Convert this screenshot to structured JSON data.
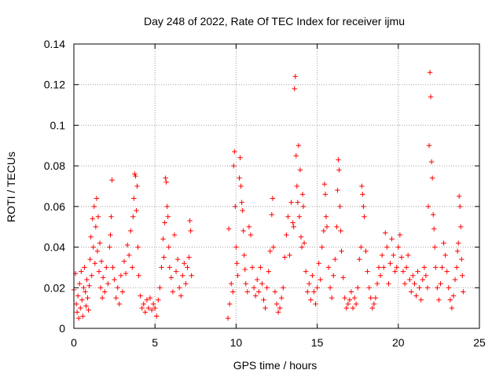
{
  "chart_data": {
    "type": "scatter",
    "title": "Day 248 of 2022, Rate Of TEC Index for receiver ijmu",
    "xlabel": "GPS time / hours",
    "ylabel": "ROTI / TECUs",
    "xlim": [
      0,
      25
    ],
    "ylim": [
      0,
      0.14
    ],
    "xticks": [
      0,
      5,
      10,
      15,
      20,
      25
    ],
    "xtick_labels": [
      "0",
      "5",
      "10",
      "15",
      "20",
      "25"
    ],
    "yticks": [
      0,
      0.02,
      0.04,
      0.06,
      0.08,
      0.1,
      0.12,
      0.14
    ],
    "ytick_labels": [
      "0",
      "0.02",
      "0.04",
      "0.06",
      "0.08",
      "0.1",
      "0.12",
      "0.14"
    ],
    "grid": true,
    "marker": "+",
    "color": "#ff0000",
    "series": [
      {
        "points": [
          [
            0.0,
            0.019
          ],
          [
            0.1,
            0.027
          ],
          [
            0.15,
            0.012
          ],
          [
            0.2,
            0.008
          ],
          [
            0.25,
            0.016
          ],
          [
            0.3,
            0.005
          ],
          [
            0.35,
            0.022
          ],
          [
            0.4,
            0.01
          ],
          [
            0.45,
            0.028
          ],
          [
            0.5,
            0.014
          ],
          [
            0.55,
            0.006
          ],
          [
            0.6,
            0.02
          ],
          [
            0.65,
            0.03
          ],
          [
            0.7,
            0.018
          ],
          [
            0.75,
            0.011
          ],
          [
            0.8,
            0.024
          ],
          [
            0.85,
            0.015
          ],
          [
            0.9,
            0.009
          ],
          [
            0.95,
            0.021
          ],
          [
            1.0,
            0.034
          ],
          [
            1.05,
            0.045
          ],
          [
            1.1,
            0.026
          ],
          [
            1.15,
            0.054
          ],
          [
            1.2,
            0.04
          ],
          [
            1.25,
            0.06
          ],
          [
            1.3,
            0.032
          ],
          [
            1.35,
            0.05
          ],
          [
            1.4,
            0.064
          ],
          [
            1.45,
            0.038
          ],
          [
            1.5,
            0.055
          ],
          [
            1.55,
            0.028
          ],
          [
            1.6,
            0.042
          ],
          [
            1.65,
            0.02
          ],
          [
            1.7,
            0.033
          ],
          [
            1.75,
            0.015
          ],
          [
            1.8,
            0.025
          ],
          [
            1.9,
            0.018
          ],
          [
            2.0,
            0.03
          ],
          [
            2.1,
            0.022
          ],
          [
            2.2,
            0.04
          ],
          [
            2.25,
            0.046
          ],
          [
            2.3,
            0.055
          ],
          [
            2.35,
            0.073
          ],
          [
            2.4,
            0.03
          ],
          [
            2.5,
            0.024
          ],
          [
            2.6,
            0.015
          ],
          [
            2.7,
            0.02
          ],
          [
            2.8,
            0.012
          ],
          [
            2.9,
            0.026
          ],
          [
            3.0,
            0.018
          ],
          [
            3.1,
            0.033
          ],
          [
            3.2,
            0.027
          ],
          [
            3.3,
            0.041
          ],
          [
            3.4,
            0.036
          ],
          [
            3.5,
            0.048
          ],
          [
            3.6,
            0.03
          ],
          [
            3.65,
            0.055
          ],
          [
            3.7,
            0.064
          ],
          [
            3.75,
            0.076
          ],
          [
            3.8,
            0.075
          ],
          [
            3.85,
            0.058
          ],
          [
            3.9,
            0.07
          ],
          [
            3.95,
            0.04
          ],
          [
            4.0,
            0.026
          ],
          [
            4.1,
            0.016
          ],
          [
            4.2,
            0.01
          ],
          [
            4.3,
            0.012
          ],
          [
            4.4,
            0.008
          ],
          [
            4.5,
            0.014
          ],
          [
            4.6,
            0.01
          ],
          [
            4.7,
            0.015
          ],
          [
            4.8,
            0.009
          ],
          [
            4.9,
            0.012
          ],
          [
            5.0,
            0.01
          ],
          [
            5.1,
            0.006
          ],
          [
            5.2,
            0.014
          ],
          [
            5.3,
            0.02
          ],
          [
            5.4,
            0.03
          ],
          [
            5.5,
            0.044
          ],
          [
            5.55,
            0.035
          ],
          [
            5.6,
            0.052
          ],
          [
            5.65,
            0.074
          ],
          [
            5.7,
            0.072
          ],
          [
            5.75,
            0.06
          ],
          [
            5.8,
            0.055
          ],
          [
            5.85,
            0.04
          ],
          [
            5.9,
            0.03
          ],
          [
            6.0,
            0.025
          ],
          [
            6.1,
            0.018
          ],
          [
            6.2,
            0.046
          ],
          [
            6.3,
            0.028
          ],
          [
            6.4,
            0.034
          ],
          [
            6.5,
            0.02
          ],
          [
            6.6,
            0.016
          ],
          [
            6.7,
            0.026
          ],
          [
            6.8,
            0.032
          ],
          [
            6.9,
            0.022
          ],
          [
            7.0,
            0.03
          ],
          [
            7.1,
            0.035
          ],
          [
            7.15,
            0.053
          ],
          [
            7.2,
            0.048
          ],
          [
            7.25,
            0.026
          ],
          [
            9.5,
            0.005
          ],
          [
            9.55,
            0.049
          ],
          [
            9.6,
            0.012
          ],
          [
            9.7,
            0.022
          ],
          [
            9.8,
            0.018
          ],
          [
            9.85,
            0.08
          ],
          [
            9.9,
            0.087
          ],
          [
            9.95,
            0.06
          ],
          [
            10.0,
            0.04
          ],
          [
            10.05,
            0.032
          ],
          [
            10.1,
            0.026
          ],
          [
            10.2,
            0.074
          ],
          [
            10.25,
            0.084
          ],
          [
            10.3,
            0.07
          ],
          [
            10.35,
            0.062
          ],
          [
            10.4,
            0.058
          ],
          [
            10.45,
            0.048
          ],
          [
            10.5,
            0.036
          ],
          [
            10.55,
            0.029
          ],
          [
            10.6,
            0.022
          ],
          [
            10.7,
            0.018
          ],
          [
            10.8,
            0.05
          ],
          [
            10.9,
            0.046
          ],
          [
            11.0,
            0.03
          ],
          [
            11.1,
            0.02
          ],
          [
            11.2,
            0.016
          ],
          [
            11.3,
            0.024
          ],
          [
            11.4,
            0.018
          ],
          [
            11.5,
            0.03
          ],
          [
            11.6,
            0.022
          ],
          [
            11.7,
            0.014
          ],
          [
            11.8,
            0.01
          ],
          [
            11.9,
            0.02
          ],
          [
            12.0,
            0.028
          ],
          [
            12.1,
            0.038
          ],
          [
            12.2,
            0.056
          ],
          [
            12.25,
            0.064
          ],
          [
            12.3,
            0.04
          ],
          [
            12.4,
            0.018
          ],
          [
            12.5,
            0.012
          ],
          [
            12.6,
            0.008
          ],
          [
            12.7,
            0.01
          ],
          [
            12.8,
            0.015
          ],
          [
            12.9,
            0.02
          ],
          [
            13.0,
            0.035
          ],
          [
            13.1,
            0.046
          ],
          [
            13.2,
            0.055
          ],
          [
            13.3,
            0.036
          ],
          [
            13.4,
            0.062
          ],
          [
            13.5,
            0.052
          ],
          [
            13.55,
            0.05
          ],
          [
            13.6,
            0.118
          ],
          [
            13.65,
            0.124
          ],
          [
            13.7,
            0.085
          ],
          [
            13.75,
            0.07
          ],
          [
            13.8,
            0.062
          ],
          [
            13.85,
            0.09
          ],
          [
            13.9,
            0.055
          ],
          [
            13.95,
            0.078
          ],
          [
            14.0,
            0.045
          ],
          [
            14.05,
            0.04
          ],
          [
            14.1,
            0.066
          ],
          [
            14.15,
            0.06
          ],
          [
            14.2,
            0.042
          ],
          [
            14.3,
            0.028
          ],
          [
            14.4,
            0.018
          ],
          [
            14.5,
            0.022
          ],
          [
            14.6,
            0.014
          ],
          [
            14.7,
            0.026
          ],
          [
            14.8,
            0.018
          ],
          [
            14.9,
            0.012
          ],
          [
            15.0,
            0.02
          ],
          [
            15.1,
            0.032
          ],
          [
            15.2,
            0.024
          ],
          [
            15.3,
            0.04
          ],
          [
            15.4,
            0.048
          ],
          [
            15.45,
            0.071
          ],
          [
            15.5,
            0.066
          ],
          [
            15.55,
            0.055
          ],
          [
            15.6,
            0.05
          ],
          [
            15.7,
            0.03
          ],
          [
            15.8,
            0.02
          ],
          [
            15.9,
            0.015
          ],
          [
            16.0,
            0.026
          ],
          [
            16.1,
            0.034
          ],
          [
            16.2,
            0.05
          ],
          [
            16.25,
            0.068
          ],
          [
            16.3,
            0.083
          ],
          [
            16.35,
            0.078
          ],
          [
            16.4,
            0.06
          ],
          [
            16.45,
            0.048
          ],
          [
            16.5,
            0.038
          ],
          [
            16.6,
            0.025
          ],
          [
            16.7,
            0.015
          ],
          [
            16.8,
            0.01
          ],
          [
            16.9,
            0.012
          ],
          [
            17.0,
            0.014
          ],
          [
            17.1,
            0.018
          ],
          [
            17.2,
            0.01
          ],
          [
            17.3,
            0.015
          ],
          [
            17.4,
            0.012
          ],
          [
            17.5,
            0.02
          ],
          [
            17.6,
            0.034
          ],
          [
            17.7,
            0.04
          ],
          [
            17.75,
            0.07
          ],
          [
            17.8,
            0.066
          ],
          [
            17.85,
            0.06
          ],
          [
            17.9,
            0.055
          ],
          [
            18.0,
            0.038
          ],
          [
            18.1,
            0.028
          ],
          [
            18.2,
            0.02
          ],
          [
            18.3,
            0.015
          ],
          [
            18.4,
            0.01
          ],
          [
            18.5,
            0.012
          ],
          [
            18.6,
            0.015
          ],
          [
            18.7,
            0.022
          ],
          [
            18.8,
            0.03
          ],
          [
            18.9,
            0.026
          ],
          [
            19.0,
            0.036
          ],
          [
            19.1,
            0.03
          ],
          [
            19.2,
            0.047
          ],
          [
            19.3,
            0.04
          ],
          [
            19.4,
            0.022
          ],
          [
            19.5,
            0.032
          ],
          [
            19.6,
            0.044
          ],
          [
            19.7,
            0.036
          ],
          [
            19.8,
            0.028
          ],
          [
            19.9,
            0.03
          ],
          [
            20.0,
            0.04
          ],
          [
            20.1,
            0.046
          ],
          [
            20.2,
            0.035
          ],
          [
            20.3,
            0.028
          ],
          [
            20.4,
            0.022
          ],
          [
            20.5,
            0.03
          ],
          [
            20.6,
            0.036
          ],
          [
            20.7,
            0.024
          ],
          [
            20.8,
            0.018
          ],
          [
            20.9,
            0.026
          ],
          [
            21.0,
            0.022
          ],
          [
            21.1,
            0.016
          ],
          [
            21.2,
            0.028
          ],
          [
            21.3,
            0.02
          ],
          [
            21.4,
            0.014
          ],
          [
            21.5,
            0.024
          ],
          [
            21.6,
            0.03
          ],
          [
            21.7,
            0.026
          ],
          [
            21.8,
            0.02
          ],
          [
            21.85,
            0.06
          ],
          [
            21.9,
            0.09
          ],
          [
            21.95,
            0.126
          ],
          [
            22.0,
            0.114
          ],
          [
            22.05,
            0.082
          ],
          [
            22.1,
            0.074
          ],
          [
            22.15,
            0.056
          ],
          [
            22.2,
            0.049
          ],
          [
            22.25,
            0.04
          ],
          [
            22.3,
            0.03
          ],
          [
            22.4,
            0.02
          ],
          [
            22.5,
            0.014
          ],
          [
            22.6,
            0.022
          ],
          [
            22.7,
            0.03
          ],
          [
            22.8,
            0.042
          ],
          [
            22.9,
            0.036
          ],
          [
            23.0,
            0.028
          ],
          [
            23.1,
            0.02
          ],
          [
            23.2,
            0.014
          ],
          [
            23.3,
            0.01
          ],
          [
            23.4,
            0.016
          ],
          [
            23.5,
            0.024
          ],
          [
            23.6,
            0.03
          ],
          [
            23.65,
            0.038
          ],
          [
            23.7,
            0.042
          ],
          [
            23.75,
            0.065
          ],
          [
            23.8,
            0.06
          ],
          [
            23.85,
            0.05
          ],
          [
            23.9,
            0.034
          ],
          [
            23.95,
            0.026
          ],
          [
            24.0,
            0.018
          ]
        ]
      }
    ]
  }
}
